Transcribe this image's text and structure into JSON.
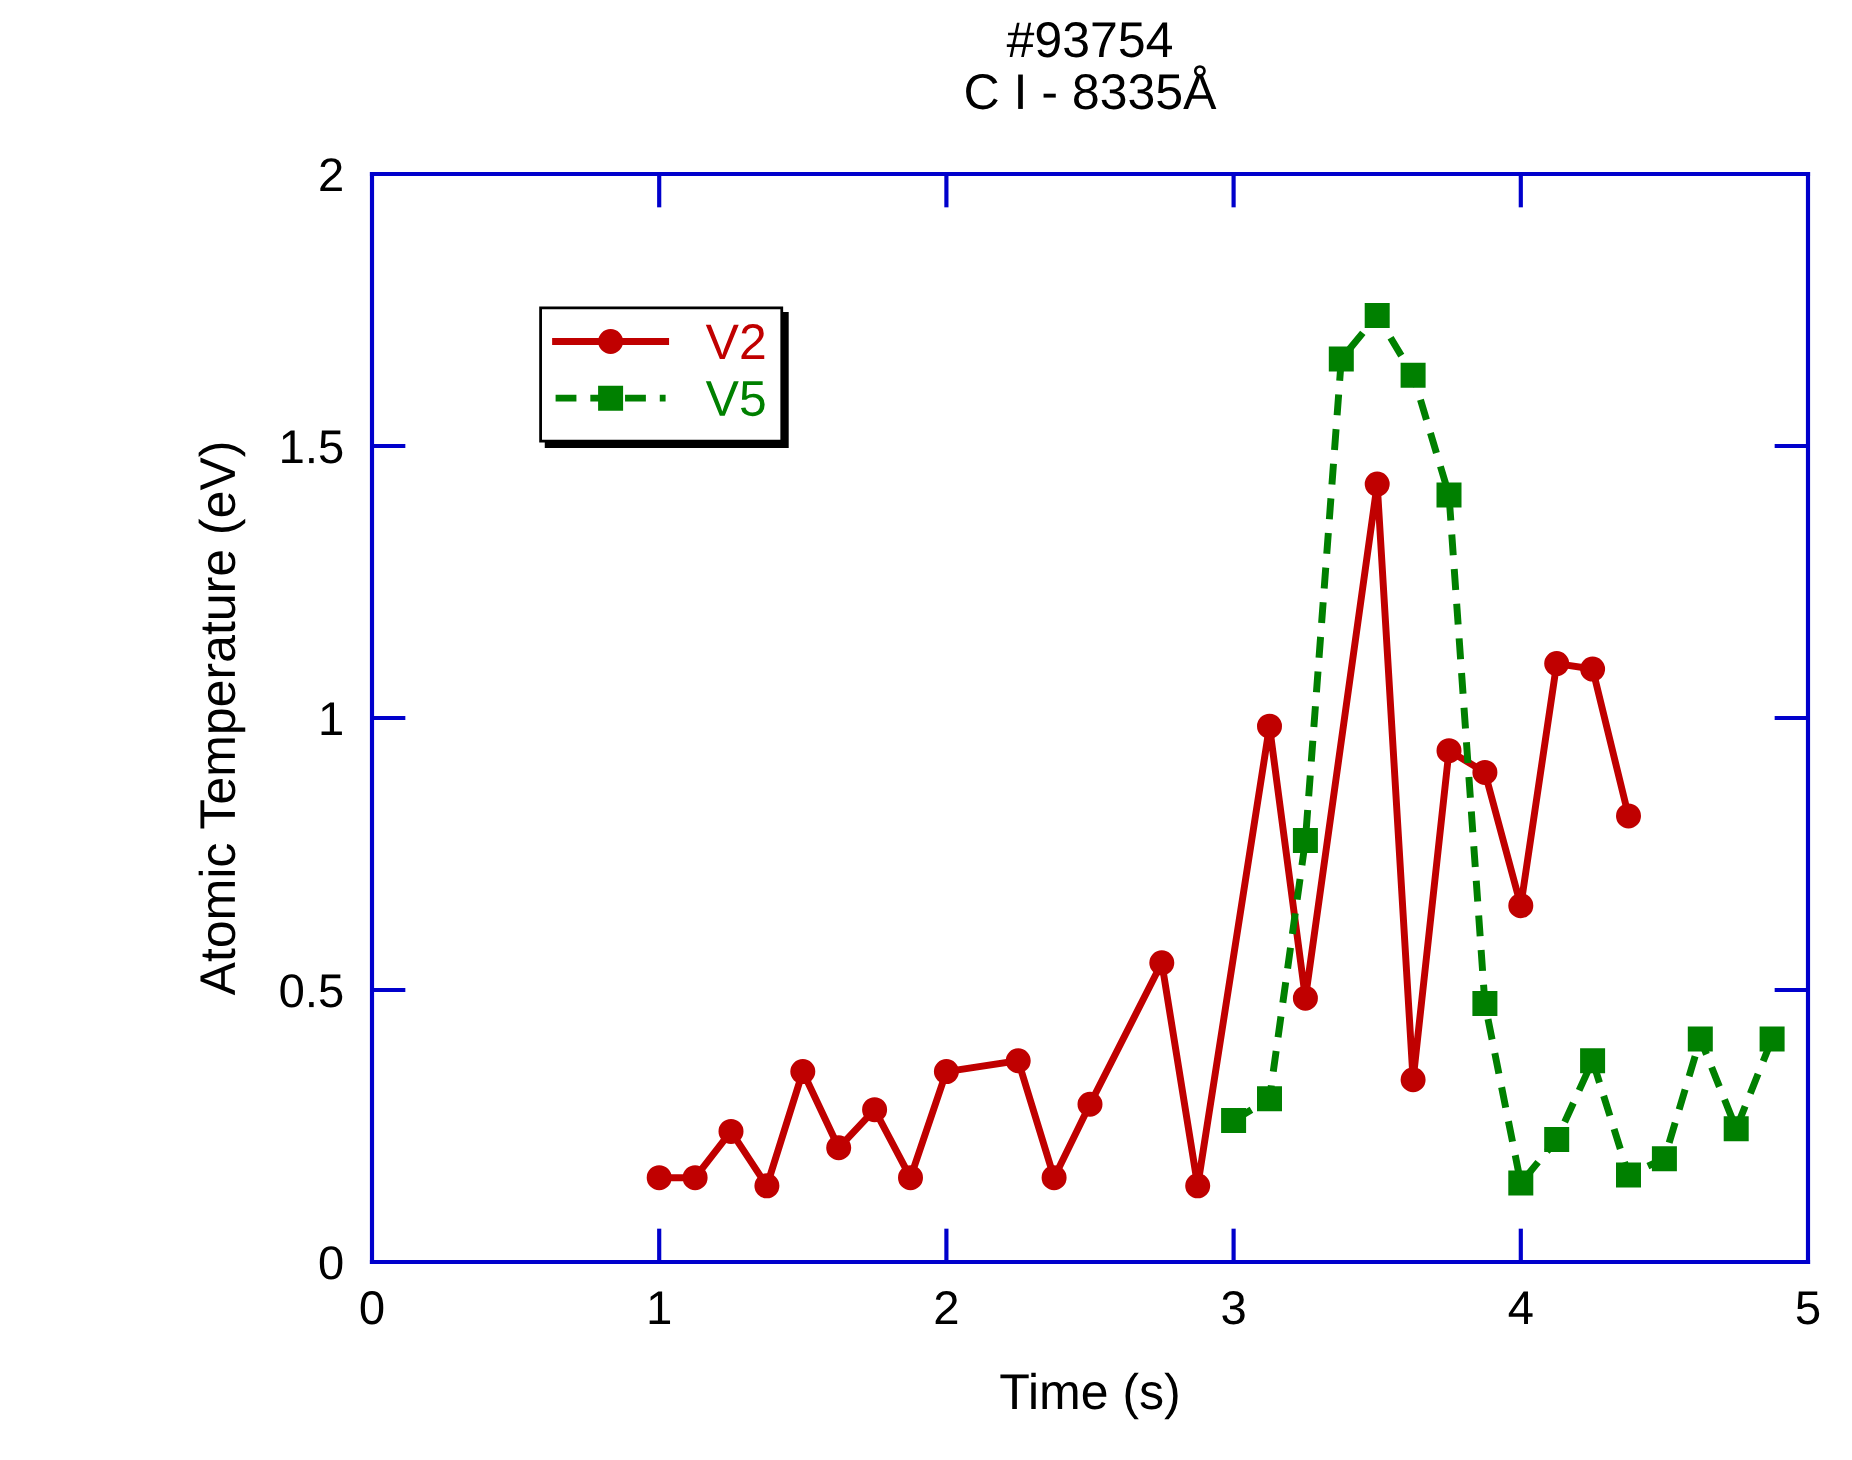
{
  "chart_data": {
    "type": "line",
    "title": "#93754",
    "subtitle": "C I - 8335Å",
    "xlabel": "Time (s)",
    "ylabel": "Atomic Temperature (eV)",
    "series": [
      {
        "name": "V2",
        "color": "#c00000",
        "marker": "circle",
        "line_style": "solid",
        "x": [
          1,
          1.125,
          1.25,
          1.375,
          1.5,
          1.625,
          1.75,
          1.875,
          2,
          2.25,
          2.375,
          2.5,
          2.75,
          2.875,
          3.125,
          3.25,
          3.5,
          3.625,
          3.75,
          3.875,
          4,
          4.125,
          4.25,
          4.375
        ],
        "values": [
          0.155,
          0.155,
          0.24,
          0.14,
          0.35,
          0.21,
          0.28,
          0.155,
          0.35,
          0.37,
          0.155,
          0.29,
          0.55,
          0.14,
          0.985,
          0.485,
          1.43,
          0.335,
          0.94,
          0.9,
          0.655,
          1.1,
          1.09,
          0.82
        ]
      },
      {
        "name": "V5",
        "color": "#008000",
        "marker": "square",
        "line_style": "dashed",
        "x": [
          3,
          3.125,
          3.25,
          3.375,
          3.5,
          3.625,
          3.75,
          3.875,
          4,
          4.125,
          4.25,
          4.375,
          4.5,
          4.625,
          4.75,
          4.875
        ],
        "values": [
          0.26,
          0.3,
          0.775,
          1.66,
          1.74,
          1.63,
          1.41,
          0.475,
          0.145,
          0.225,
          0.37,
          0.16,
          0.19,
          0.41,
          0.245,
          0.41
        ]
      }
    ],
    "xlim": [
      0,
      5
    ],
    "ylim": [
      0,
      2
    ],
    "xticks": [
      0,
      1,
      2,
      3,
      4,
      5
    ],
    "yticks": [
      0,
      0.5,
      1,
      1.5,
      2
    ],
    "grid": false,
    "legend": "top left"
  }
}
